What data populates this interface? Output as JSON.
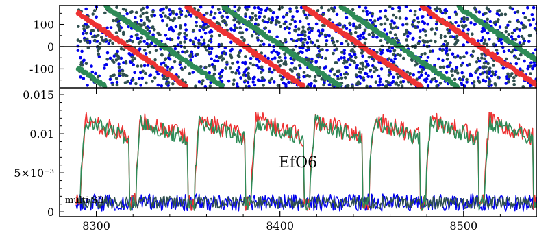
{
  "chart_data": [
    {
      "type": "scatter",
      "panel": "top",
      "xlim": [
        8280,
        8540
      ],
      "ylim": [
        -185,
        185
      ],
      "yticks": [
        {
          "value": 100,
          "label": "100"
        },
        {
          "value": 0,
          "label": "0"
        },
        {
          "value": -100,
          "label": "-100"
        }
      ],
      "hline": 0,
      "series": [
        {
          "color": "#ee3333",
          "style": "diagonal-bands",
          "period": 64,
          "phase": 8285,
          "wraps_per_period": 1
        },
        {
          "color": "#2e8b57",
          "style": "diagonal-bands",
          "period": 64,
          "phase": 8305,
          "wraps_per_period": 1
        },
        {
          "color": "#0000ee",
          "style": "random-scatter"
        },
        {
          "color": "#2f4f4f",
          "style": "random-scatter"
        }
      ]
    },
    {
      "type": "line",
      "panel": "bottom",
      "title": "EfO6",
      "annotation": "multi SB",
      "xlim": [
        8280,
        8540
      ],
      "ylim": [
        -0.0006,
        0.0158
      ],
      "xticks": [
        {
          "value": 8300,
          "label": "8300"
        },
        {
          "value": 8400,
          "label": "8400"
        },
        {
          "value": 8500,
          "label": "8500"
        }
      ],
      "yticks": [
        {
          "value": 0.015,
          "label": "0.015"
        },
        {
          "value": 0.01,
          "label": "0.01"
        },
        {
          "value": 0.005,
          "label": "5×10⁻³"
        },
        {
          "value": 0,
          "label": "0"
        }
      ],
      "x_start": 8289,
      "dip_centers": [
        8290,
        8320,
        8352,
        8383,
        8415,
        8447,
        8478,
        8510,
        8540
      ],
      "series": [
        {
          "color": "#ee3333",
          "level_high": 0.0118,
          "level_low": 0.0095,
          "noise": 0.0012
        },
        {
          "color": "#2e8b57",
          "level_high": 0.0115,
          "level_low": 0.0093,
          "noise": 0.001
        },
        {
          "color": "#0000ee",
          "level": 0.0012,
          "noise": 0.0011
        },
        {
          "color": "#2f4f4f",
          "level": 0.0012,
          "noise": 0.0008
        }
      ]
    }
  ]
}
